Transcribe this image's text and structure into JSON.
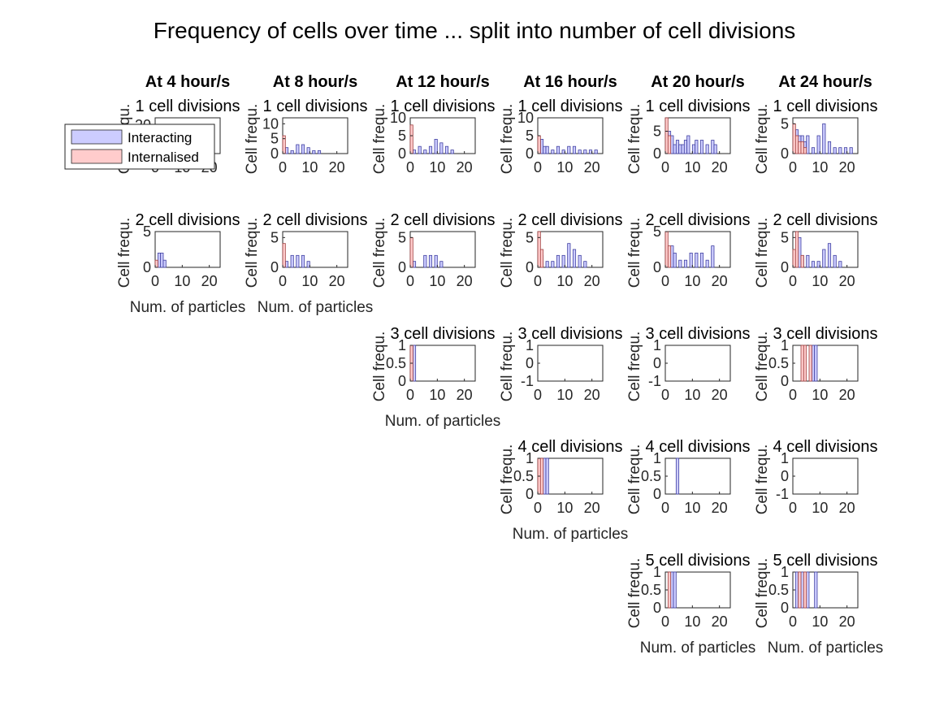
{
  "chart_data": {
    "type": "bar",
    "title": "Frequency of cells over time ... split into number of cell divisions",
    "column_titles": [
      "At 4 hour/s",
      "At 8 hour/s",
      "At 12 hour/s",
      "At 16 hour/s",
      "At 20 hour/s",
      "At 24 hour/s"
    ],
    "legend": {
      "placement": "top-left",
      "entries": [
        {
          "label": "Interacting",
          "color": "#ccccff"
        },
        {
          "label": "Internalised",
          "color": "#ffcccc"
        }
      ]
    },
    "xlabel": "Num. of particles",
    "ylabel": "Cell frequ.",
    "xlim": [
      0,
      24
    ],
    "xticks": [
      "0",
      "10",
      "20"
    ],
    "panels": [
      {
        "title": "1 cell divisions",
        "row": 0,
        "col": 0,
        "ylim": [
          0,
          25
        ],
        "yticks": [
          "0",
          "20"
        ],
        "interacting": [],
        "internalised": []
      },
      {
        "title": "1 cell divisions",
        "row": 0,
        "col": 1,
        "ylim": [
          0,
          12
        ],
        "yticks": [
          "0",
          "5",
          "10"
        ],
        "interacting": [
          [
            1,
            2
          ],
          [
            3,
            1
          ],
          [
            5,
            3
          ],
          [
            7,
            3
          ],
          [
            9,
            2
          ],
          [
            11,
            1
          ],
          [
            13,
            1
          ]
        ],
        "internalised": [
          [
            0,
            6
          ]
        ]
      },
      {
        "title": "1 cell divisions",
        "row": 0,
        "col": 2,
        "ylim": [
          0,
          10
        ],
        "yticks": [
          "0",
          "5",
          "10"
        ],
        "interacting": [
          [
            1,
            1
          ],
          [
            3,
            2
          ],
          [
            5,
            1
          ],
          [
            7,
            2
          ],
          [
            9,
            4
          ],
          [
            11,
            3
          ],
          [
            13,
            2
          ],
          [
            15,
            1
          ]
        ],
        "internalised": [
          [
            0,
            8
          ]
        ]
      },
      {
        "title": "1 cell divisions",
        "row": 0,
        "col": 3,
        "ylim": [
          0,
          10
        ],
        "yticks": [
          "0",
          "5",
          "10"
        ],
        "interacting": [
          [
            1,
            4
          ],
          [
            2,
            2
          ],
          [
            3,
            2
          ],
          [
            5,
            1
          ],
          [
            7,
            2
          ],
          [
            9,
            1
          ],
          [
            11,
            2
          ],
          [
            13,
            2
          ],
          [
            15,
            1
          ],
          [
            17,
            1
          ],
          [
            19,
            1
          ],
          [
            21,
            1
          ]
        ],
        "internalised": [
          [
            0,
            5
          ]
        ]
      },
      {
        "title": "1 cell divisions",
        "row": 0,
        "col": 4,
        "ylim": [
          0,
          8
        ],
        "yticks": [
          "0",
          "5"
        ],
        "interacting": [
          [
            1,
            5
          ],
          [
            2,
            4
          ],
          [
            3,
            2
          ],
          [
            4,
            3
          ],
          [
            5,
            2
          ],
          [
            6,
            2
          ],
          [
            7,
            3
          ],
          [
            8,
            4
          ],
          [
            10,
            2
          ],
          [
            11,
            3
          ],
          [
            13,
            3
          ],
          [
            15,
            2
          ],
          [
            17,
            3
          ],
          [
            18,
            2
          ]
        ],
        "internalised": [
          [
            0,
            8
          ],
          [
            1,
            4
          ]
        ]
      },
      {
        "title": "1 cell divisions",
        "row": 0,
        "col": 5,
        "ylim": [
          0,
          6
        ],
        "yticks": [
          "0",
          "5"
        ],
        "interacting": [
          [
            1,
            4
          ],
          [
            2,
            3
          ],
          [
            3,
            3
          ],
          [
            4,
            2
          ],
          [
            5,
            3
          ],
          [
            7,
            1
          ],
          [
            9,
            3
          ],
          [
            11,
            5
          ],
          [
            13,
            2
          ],
          [
            15,
            1
          ],
          [
            17,
            1
          ],
          [
            19,
            1
          ],
          [
            21,
            1
          ]
        ],
        "internalised": [
          [
            0,
            5
          ],
          [
            1,
            3
          ],
          [
            2,
            2
          ],
          [
            3,
            2
          ],
          [
            4,
            1
          ]
        ]
      },
      {
        "title": "2 cell divisions",
        "row": 1,
        "col": 0,
        "ylim": [
          0,
          5
        ],
        "yticks": [
          "0",
          "5"
        ],
        "interacting": [
          [
            1,
            2
          ],
          [
            2,
            2
          ],
          [
            3,
            1
          ]
        ],
        "internalised": [
          [
            0,
            1
          ]
        ]
      },
      {
        "title": "2 cell divisions",
        "row": 1,
        "col": 1,
        "ylim": [
          0,
          6
        ],
        "yticks": [
          "0",
          "5"
        ],
        "interacting": [
          [
            1,
            1
          ],
          [
            3,
            2
          ],
          [
            5,
            2
          ],
          [
            7,
            2
          ],
          [
            9,
            1
          ]
        ],
        "internalised": [
          [
            0,
            4
          ]
        ]
      },
      {
        "title": "2 cell divisions",
        "row": 1,
        "col": 2,
        "ylim": [
          0,
          6
        ],
        "yticks": [
          "0",
          "5"
        ],
        "interacting": [
          [
            1,
            1
          ],
          [
            5,
            2
          ],
          [
            7,
            2
          ],
          [
            9,
            2
          ],
          [
            11,
            1
          ]
        ],
        "internalised": [
          [
            0,
            5
          ]
        ]
      },
      {
        "title": "2 cell divisions",
        "row": 1,
        "col": 3,
        "ylim": [
          0,
          6
        ],
        "yticks": [
          "0",
          "5"
        ],
        "interacting": [
          [
            1,
            2
          ],
          [
            3,
            1
          ],
          [
            5,
            1
          ],
          [
            7,
            2
          ],
          [
            9,
            2
          ],
          [
            11,
            4
          ],
          [
            13,
            3
          ],
          [
            15,
            2
          ],
          [
            17,
            1
          ]
        ],
        "internalised": [
          [
            0,
            6
          ],
          [
            1,
            3
          ]
        ]
      },
      {
        "title": "2 cell divisions",
        "row": 1,
        "col": 4,
        "ylim": [
          0,
          5
        ],
        "yticks": [
          "0",
          "5"
        ],
        "interacting": [
          [
            2,
            3
          ],
          [
            3,
            2
          ],
          [
            5,
            1
          ],
          [
            7,
            1
          ],
          [
            9,
            2
          ],
          [
            11,
            2
          ],
          [
            13,
            2
          ],
          [
            15,
            1
          ],
          [
            17,
            3
          ]
        ],
        "internalised": [
          [
            0,
            5
          ],
          [
            1,
            3
          ]
        ]
      },
      {
        "title": "2 cell divisions",
        "row": 1,
        "col": 5,
        "ylim": [
          0,
          6
        ],
        "yticks": [
          "0",
          "5"
        ],
        "interacting": [
          [
            1,
            3
          ],
          [
            2,
            5
          ],
          [
            3,
            2
          ],
          [
            5,
            2
          ],
          [
            7,
            1
          ],
          [
            9,
            1
          ],
          [
            11,
            3
          ],
          [
            13,
            4
          ],
          [
            15,
            2
          ],
          [
            17,
            1
          ]
        ],
        "internalised": [
          [
            0,
            3
          ],
          [
            1,
            6
          ],
          [
            3,
            2
          ]
        ]
      },
      {
        "title": "3 cell divisions",
        "row": 2,
        "col": 2,
        "ylim": [
          0,
          1
        ],
        "yticks": [
          "0",
          "0.5",
          "1"
        ],
        "interacting": [
          [
            1,
            1
          ]
        ],
        "internalised": [
          [
            0,
            1
          ]
        ]
      },
      {
        "title": "3 cell divisions",
        "row": 2,
        "col": 3,
        "ylim": [
          -1,
          1
        ],
        "yticks": [
          "-1",
          "0",
          "1"
        ],
        "interacting": [],
        "internalised": []
      },
      {
        "title": "3 cell divisions",
        "row": 2,
        "col": 4,
        "ylim": [
          -1,
          1
        ],
        "yticks": [
          "-1",
          "0",
          "1"
        ],
        "interacting": [],
        "internalised": []
      },
      {
        "title": "3 cell divisions",
        "row": 2,
        "col": 5,
        "ylim": [
          0,
          1
        ],
        "yticks": [
          "0",
          "0.5",
          "1"
        ],
        "interacting": [
          [
            7,
            1
          ],
          [
            8,
            1
          ]
        ],
        "internalised": [
          [
            3,
            1
          ],
          [
            4,
            1
          ],
          [
            6,
            1
          ]
        ]
      },
      {
        "title": "4 cell divisions",
        "row": 3,
        "col": 3,
        "ylim": [
          0,
          1
        ],
        "yticks": [
          "0",
          "0.5",
          "1"
        ],
        "interacting": [
          [
            2,
            1
          ],
          [
            3,
            1
          ]
        ],
        "internalised": [
          [
            0,
            1
          ],
          [
            1,
            1
          ]
        ]
      },
      {
        "title": "4 cell divisions",
        "row": 3,
        "col": 4,
        "ylim": [
          0,
          1
        ],
        "yticks": [
          "0",
          "0.5",
          "1"
        ],
        "interacting": [
          [
            4,
            1
          ]
        ],
        "internalised": []
      },
      {
        "title": "4 cell divisions",
        "row": 3,
        "col": 5,
        "ylim": [
          -1,
          1
        ],
        "yticks": [
          "-1",
          "0",
          "1"
        ],
        "interacting": [],
        "internalised": []
      },
      {
        "title": "5 cell divisions",
        "row": 4,
        "col": 4,
        "ylim": [
          0,
          1
        ],
        "yticks": [
          "0",
          "0.5",
          "1"
        ],
        "interacting": [
          [
            2,
            1
          ],
          [
            3,
            1
          ]
        ],
        "internalised": [
          [
            1,
            1
          ]
        ]
      },
      {
        "title": "5 cell divisions",
        "row": 4,
        "col": 5,
        "ylim": [
          0,
          1
        ],
        "yticks": [
          "0",
          "0.5",
          "1"
        ],
        "interacting": [
          [
            1,
            1
          ],
          [
            3,
            1
          ],
          [
            5,
            1
          ],
          [
            8,
            1
          ]
        ],
        "internalised": [
          [
            2,
            1
          ],
          [
            4,
            1
          ]
        ]
      }
    ],
    "xlabel_panels": [
      [
        1,
        0
      ],
      [
        1,
        1
      ],
      [
        2,
        2
      ],
      [
        3,
        3
      ],
      [
        4,
        4
      ],
      [
        4,
        5
      ]
    ],
    "ylabel_panels": "all"
  }
}
